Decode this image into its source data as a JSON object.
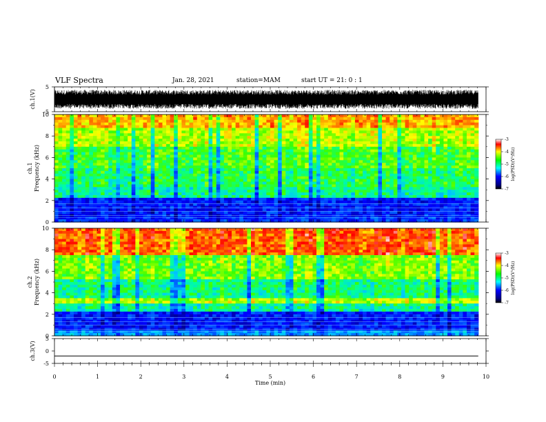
{
  "header": {
    "title": "VLF Spectra",
    "date": "Jan. 28, 2021",
    "station": "station=MAM",
    "start": "start UT =  21: 0 : 1"
  },
  "chart_data": [
    {
      "type": "line",
      "panel": "ch1-waveform",
      "ylabel": "ch.1(V)",
      "ylim": [
        -5,
        5
      ],
      "yticks": [
        "5",
        "-5"
      ],
      "xlim": [
        0,
        10
      ],
      "series": [
        {
          "values_note_min": -3.8,
          "values_note_max": 3.8
        }
      ],
      "color": "#000000"
    },
    {
      "type": "heatmap",
      "panel": "ch1-spectrogram",
      "ylabel": "ch.1\nFrequency (kHz)",
      "ylim": [
        0,
        10
      ],
      "yticks": [
        "0",
        "2",
        "4",
        "6",
        "8",
        "10"
      ],
      "xlim": [
        0,
        9.82
      ],
      "bands": [
        {
          "f0": 0,
          "f1": 0.6,
          "level": -6.3
        },
        {
          "f0": 0.6,
          "f1": 2.3,
          "level": -6.4
        },
        {
          "f0": 2.3,
          "f1": 3.2,
          "level": -5.2
        },
        {
          "f0": 3.2,
          "f1": 5.0,
          "level": -5.0
        },
        {
          "f0": 5.0,
          "f1": 7.0,
          "level": -4.8
        },
        {
          "f0": 7.0,
          "f1": 8.8,
          "level": -4.4
        },
        {
          "f0": 8.8,
          "f1": 10,
          "level": -3.9
        }
      ],
      "colorbar": {
        "label": "log(PSD)(V²/Hz)",
        "range": [
          -7,
          -3
        ],
        "ticks": [
          "-3",
          "-4",
          "-5",
          "-6",
          "-7"
        ]
      }
    },
    {
      "type": "heatmap",
      "panel": "ch2-spectrogram",
      "ylabel": "ch.2\nFrequency (kHz)",
      "ylim": [
        0,
        10
      ],
      "yticks": [
        "0",
        "2",
        "4",
        "6",
        "8",
        "10"
      ],
      "xlim": [
        0,
        9.82
      ],
      "bands": [
        {
          "f0": 0,
          "f1": 0.5,
          "level": -5.8
        },
        {
          "f0": 0.5,
          "f1": 2.3,
          "level": -6.4
        },
        {
          "f0": 2.3,
          "f1": 2.9,
          "level": -5.2
        },
        {
          "f0": 2.9,
          "f1": 3.5,
          "level": -4.4
        },
        {
          "f0": 3.5,
          "f1": 5.2,
          "level": -5.1
        },
        {
          "f0": 5.2,
          "f1": 7.5,
          "level": -4.6
        },
        {
          "f0": 7.5,
          "f1": 10,
          "level": -3.6
        }
      ],
      "colorbar": {
        "label": "log(PSD)(V²/Hz)",
        "range": [
          -7,
          -3
        ],
        "ticks": [
          "-3",
          "-4",
          "-5",
          "-6",
          "-7"
        ]
      }
    },
    {
      "type": "line",
      "panel": "ch3-waveform",
      "ylabel": "ch.3(V)",
      "ylim": [
        -5,
        5
      ],
      "yticks": [
        "5",
        "0",
        "-5"
      ],
      "xlim": [
        0,
        10
      ],
      "series": [
        {
          "constant": -2
        }
      ],
      "color": "#000000"
    }
  ],
  "xaxis": {
    "label": "Time (min)",
    "ticks": [
      "0",
      "1",
      "2",
      "3",
      "4",
      "5",
      "6",
      "7",
      "8",
      "9",
      "10"
    ],
    "range": [
      0,
      10
    ]
  },
  "colors": {
    "colormap": [
      "#000080",
      "#0000ff",
      "#00ffff",
      "#00ff00",
      "#ffff00",
      "#ff0000",
      "#ffffff"
    ]
  }
}
